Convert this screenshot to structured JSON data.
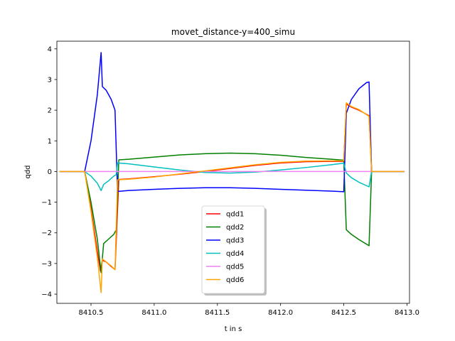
{
  "chart_data": {
    "type": "line",
    "title": "movet_distance-y=400_simu",
    "xlabel": "t in s",
    "ylabel": "qdd",
    "xlim": [
      8410.23,
      8413.02
    ],
    "ylim": [
      -4.3,
      4.25
    ],
    "xticks": [
      8410.5,
      8411.0,
      8411.5,
      8412.0,
      8412.5,
      8413.0
    ],
    "xtick_labels": [
      "8410.5",
      "8411.0",
      "8411.5",
      "8412.0",
      "8412.5",
      "8413.0"
    ],
    "yticks": [
      -4,
      -3,
      -2,
      -1,
      0,
      1,
      2,
      3,
      4
    ],
    "ytick_labels": [
      "−4",
      "−3",
      "−2",
      "−1",
      "0",
      "1",
      "2",
      "3",
      "4"
    ],
    "grid": false,
    "legend_position": "lower-center",
    "series": [
      {
        "name": "qdd1",
        "color": "#ff0000",
        "points": [
          [
            8410.25,
            0
          ],
          [
            8410.45,
            0
          ],
          [
            8410.5,
            -1.2
          ],
          [
            8410.55,
            -2.6
          ],
          [
            8410.575,
            -3.25
          ],
          [
            8410.59,
            -2.9
          ],
          [
            8410.62,
            -2.95
          ],
          [
            8410.66,
            -3.1
          ],
          [
            8410.69,
            -3.2
          ],
          [
            8410.72,
            -0.26
          ],
          [
            8410.8,
            -0.24
          ],
          [
            8411.0,
            -0.17
          ],
          [
            8411.2,
            -0.09
          ],
          [
            8411.4,
            0.0
          ],
          [
            8411.6,
            0.1
          ],
          [
            8411.8,
            0.2
          ],
          [
            8412.0,
            0.28
          ],
          [
            8412.2,
            0.32
          ],
          [
            8412.4,
            0.33
          ],
          [
            8412.5,
            0.33
          ],
          [
            8412.52,
            2.2
          ],
          [
            8412.56,
            2.1
          ],
          [
            8412.62,
            2.0
          ],
          [
            8412.7,
            1.82
          ],
          [
            8412.72,
            0
          ],
          [
            8412.98,
            0
          ]
        ]
      },
      {
        "name": "qdd2",
        "color": "#008000",
        "points": [
          [
            8410.25,
            0
          ],
          [
            8410.45,
            0
          ],
          [
            8410.5,
            -1.0
          ],
          [
            8410.55,
            -2.2
          ],
          [
            8410.58,
            -3.3
          ],
          [
            8410.6,
            -2.35
          ],
          [
            8410.64,
            -2.2
          ],
          [
            8410.68,
            -2.05
          ],
          [
            8410.7,
            -1.9
          ],
          [
            8410.72,
            0.38
          ],
          [
            8410.8,
            0.4
          ],
          [
            8411.0,
            0.47
          ],
          [
            8411.2,
            0.54
          ],
          [
            8411.4,
            0.58
          ],
          [
            8411.6,
            0.6
          ],
          [
            8411.8,
            0.58
          ],
          [
            8412.0,
            0.53
          ],
          [
            8412.2,
            0.46
          ],
          [
            8412.4,
            0.4
          ],
          [
            8412.5,
            0.37
          ],
          [
            8412.52,
            -1.9
          ],
          [
            8412.56,
            -2.05
          ],
          [
            8412.62,
            -2.22
          ],
          [
            8412.7,
            -2.42
          ],
          [
            8412.72,
            0
          ],
          [
            8412.98,
            0
          ]
        ]
      },
      {
        "name": "qdd3",
        "color": "#0000ff",
        "points": [
          [
            8410.25,
            0
          ],
          [
            8410.45,
            0
          ],
          [
            8410.5,
            1.0
          ],
          [
            8410.55,
            2.5
          ],
          [
            8410.58,
            3.88
          ],
          [
            8410.59,
            2.77
          ],
          [
            8410.62,
            2.65
          ],
          [
            8410.66,
            2.35
          ],
          [
            8410.69,
            2.0
          ],
          [
            8410.71,
            -0.65
          ],
          [
            8410.8,
            -0.62
          ],
          [
            8411.0,
            -0.58
          ],
          [
            8411.2,
            -0.55
          ],
          [
            8411.4,
            -0.53
          ],
          [
            8411.6,
            -0.53
          ],
          [
            8411.8,
            -0.55
          ],
          [
            8412.0,
            -0.58
          ],
          [
            8412.2,
            -0.61
          ],
          [
            8412.4,
            -0.64
          ],
          [
            8412.5,
            -0.66
          ],
          [
            8412.52,
            1.9
          ],
          [
            8412.56,
            2.35
          ],
          [
            8412.62,
            2.7
          ],
          [
            8412.68,
            2.9
          ],
          [
            8412.7,
            2.92
          ],
          [
            8412.72,
            0
          ],
          [
            8412.98,
            0
          ]
        ]
      },
      {
        "name": "qdd4",
        "color": "#00bfbf",
        "points": [
          [
            8410.25,
            0
          ],
          [
            8410.45,
            0
          ],
          [
            8410.5,
            -0.15
          ],
          [
            8410.55,
            -0.38
          ],
          [
            8410.58,
            -0.62
          ],
          [
            8410.6,
            -0.42
          ],
          [
            8410.64,
            -0.3
          ],
          [
            8410.68,
            -0.15
          ],
          [
            8410.7,
            -0.1
          ],
          [
            8410.71,
            0.28
          ],
          [
            8410.8,
            0.25
          ],
          [
            8411.0,
            0.15
          ],
          [
            8411.2,
            0.05
          ],
          [
            8411.4,
            -0.03
          ],
          [
            8411.6,
            -0.05
          ],
          [
            8411.8,
            -0.02
          ],
          [
            8412.0,
            0.05
          ],
          [
            8412.2,
            0.13
          ],
          [
            8412.4,
            0.22
          ],
          [
            8412.5,
            0.27
          ],
          [
            8412.52,
            -0.05
          ],
          [
            8412.56,
            -0.2
          ],
          [
            8412.62,
            -0.35
          ],
          [
            8412.7,
            -0.5
          ],
          [
            8412.72,
            0
          ],
          [
            8412.98,
            0
          ]
        ]
      },
      {
        "name": "qdd5",
        "color": "#ee82ee",
        "points": [
          [
            8410.25,
            0
          ],
          [
            8412.98,
            0
          ]
        ]
      },
      {
        "name": "qdd6",
        "color": "#ffa500",
        "points": [
          [
            8410.25,
            0
          ],
          [
            8410.45,
            0
          ],
          [
            8410.5,
            -1.3
          ],
          [
            8410.55,
            -2.8
          ],
          [
            8410.58,
            -3.95
          ],
          [
            8410.59,
            -2.85
          ],
          [
            8410.62,
            -2.95
          ],
          [
            8410.66,
            -3.08
          ],
          [
            8410.69,
            -3.2
          ],
          [
            8410.71,
            -0.27
          ],
          [
            8410.8,
            -0.25
          ],
          [
            8411.0,
            -0.18
          ],
          [
            8411.2,
            -0.08
          ],
          [
            8411.4,
            0.02
          ],
          [
            8411.6,
            0.12
          ],
          [
            8411.8,
            0.22
          ],
          [
            8412.0,
            0.3
          ],
          [
            8412.2,
            0.34
          ],
          [
            8412.4,
            0.35
          ],
          [
            8412.5,
            0.35
          ],
          [
            8412.52,
            2.24
          ],
          [
            8412.56,
            2.12
          ],
          [
            8412.62,
            2.02
          ],
          [
            8412.7,
            1.8
          ],
          [
            8412.72,
            0
          ],
          [
            8412.98,
            0
          ]
        ]
      }
    ]
  }
}
